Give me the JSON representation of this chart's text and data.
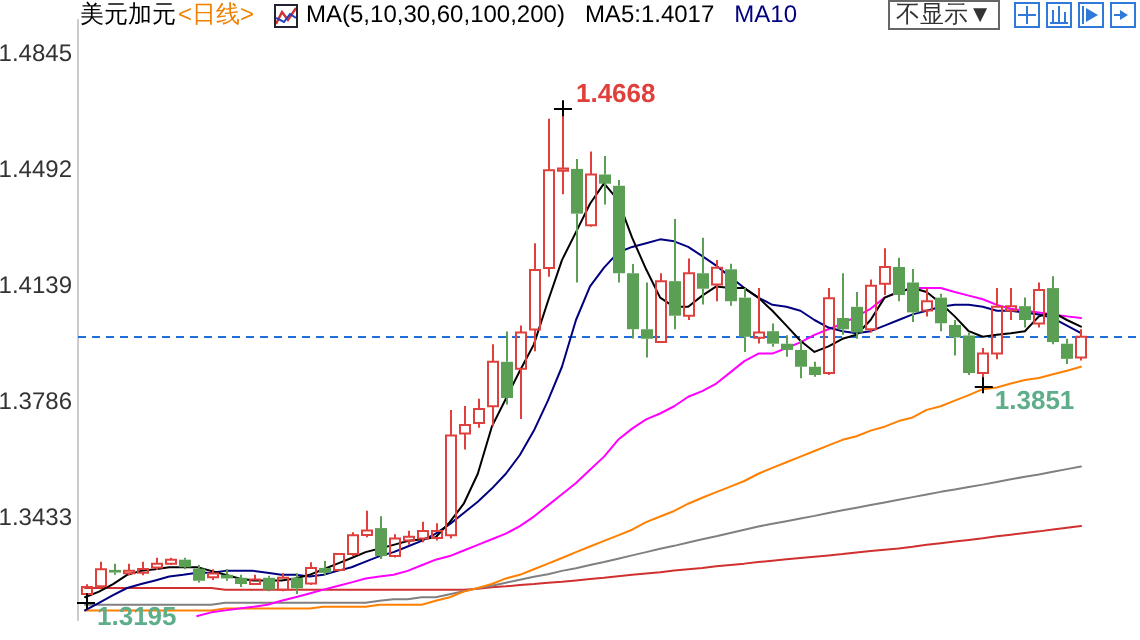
{
  "chart_data": {
    "type": "candlestick",
    "title": "美元加元",
    "subtitle": "<日线>",
    "legend": "top",
    "tick_labels": "y",
    "marker": "none",
    "categories": [
      null,
      null,
      null,
      null,
      null,
      null,
      null,
      null,
      null,
      null,
      null,
      null,
      null,
      null,
      null,
      null,
      null,
      null,
      null,
      null,
      null,
      null,
      null,
      null,
      null,
      null,
      null,
      null,
      null,
      null,
      null,
      null,
      null,
      null,
      null,
      null,
      null,
      null,
      null,
      null,
      null,
      null,
      null,
      null,
      null,
      null,
      null,
      null,
      null,
      null,
      null,
      null,
      null,
      null,
      null,
      null,
      null,
      null,
      null,
      null,
      null,
      null,
      null,
      null,
      null,
      null,
      null,
      null,
      null,
      null,
      null,
      null
    ],
    "ylim": [
      1.3127,
      1.4947
    ],
    "yticks": [
      1.3433,
      1.3786,
      1.4139,
      1.4492,
      1.4845
    ],
    "ohlc": [
      [
        1.3205,
        1.3234,
        1.3195,
        1.3226
      ],
      [
        1.3228,
        1.3303,
        1.3223,
        1.328
      ],
      [
        1.3278,
        1.3297,
        1.3263,
        1.327
      ],
      [
        1.3268,
        1.3297,
        1.3262,
        1.3275
      ],
      [
        1.3269,
        1.3303,
        1.3262,
        1.3281
      ],
      [
        1.3285,
        1.3315,
        1.3278,
        1.3297
      ],
      [
        1.3297,
        1.3315,
        1.3293,
        1.3309
      ],
      [
        1.3309,
        1.3315,
        1.328,
        1.3286
      ],
      [
        1.3282,
        1.3293,
        1.324,
        1.3245
      ],
      [
        1.3256,
        1.328,
        1.3247,
        1.3267
      ],
      [
        1.3263,
        1.328,
        1.3245,
        1.3252
      ],
      [
        1.3254,
        1.3263,
        1.3226,
        1.3235
      ],
      [
        1.3235,
        1.3263,
        1.3232,
        1.3249
      ],
      [
        1.3254,
        1.326,
        1.3213,
        1.3218
      ],
      [
        1.3218,
        1.3268,
        1.3213,
        1.3254
      ],
      [
        1.3254,
        1.3268,
        1.3205,
        1.3222
      ],
      [
        1.3237,
        1.3301,
        1.3232,
        1.3284
      ],
      [
        1.3284,
        1.3305,
        1.3262,
        1.3269
      ],
      [
        1.3278,
        1.3326,
        1.3275,
        1.3326
      ],
      [
        1.3326,
        1.3392,
        1.332,
        1.3383
      ],
      [
        1.3384,
        1.3458,
        1.3377,
        1.3398
      ],
      [
        1.3405,
        1.3441,
        1.3311,
        1.332
      ],
      [
        1.332,
        1.3386,
        1.3316,
        1.3373
      ],
      [
        1.3367,
        1.3397,
        1.3354,
        1.3379
      ],
      [
        1.3373,
        1.3424,
        1.3362,
        1.3396
      ],
      [
        1.3375,
        1.342,
        1.3367,
        1.3396
      ],
      [
        1.3383,
        1.3764,
        1.3373,
        1.3686
      ],
      [
        1.3692,
        1.3776,
        1.3644,
        1.3718
      ],
      [
        1.3724,
        1.3798,
        1.371,
        1.3767
      ],
      [
        1.3775,
        1.3963,
        1.3714,
        1.391
      ],
      [
        1.391,
        1.4002,
        1.378,
        1.38
      ],
      [
        1.3889,
        1.402,
        1.3736,
        1.3999
      ],
      [
        1.4008,
        1.427,
        1.3942,
        1.4189
      ],
      [
        1.4195,
        1.4648,
        1.4168,
        1.4492
      ],
      [
        1.449,
        1.4668,
        1.4419,
        1.4497
      ],
      [
        1.4496,
        1.4526,
        1.4151,
        1.436
      ],
      [
        1.4325,
        1.4549,
        1.432,
        1.4479
      ],
      [
        1.4479,
        1.4535,
        1.4388,
        1.4451
      ],
      [
        1.4445,
        1.4462,
        1.4151,
        1.4179
      ],
      [
        1.4179,
        1.4207,
        1.3981,
        1.4009
      ],
      [
        1.4009,
        1.4151,
        1.3923,
        1.398
      ],
      [
        1.397,
        1.4179,
        1.397,
        1.4155
      ],
      [
        1.4155,
        1.4344,
        1.4009,
        1.405
      ],
      [
        1.405,
        1.4224,
        1.4037,
        1.4179
      ],
      [
        1.4179,
        1.4287,
        1.4084,
        1.4132
      ],
      [
        1.4145,
        1.4219,
        1.4094,
        1.4196
      ],
      [
        1.4191,
        1.4208,
        1.408,
        1.4094
      ],
      [
        1.4105,
        1.4134,
        1.394,
        1.3986
      ],
      [
        1.3983,
        1.4134,
        1.3966,
        1.3999
      ],
      [
        1.4003,
        1.4026,
        1.3956,
        1.3965
      ],
      [
        1.3965,
        1.3991,
        1.3925,
        1.3946
      ],
      [
        1.3946,
        1.3976,
        1.386,
        1.3895
      ],
      [
        1.3895,
        1.391,
        1.3865,
        1.387
      ],
      [
        1.3876,
        1.4134,
        1.387,
        1.4103
      ],
      [
        1.4043,
        1.4179,
        1.3992,
        1.4009
      ],
      [
        1.4077,
        1.4122,
        1.398,
        1.3999
      ],
      [
        1.4009,
        1.416,
        1.3999,
        1.4141
      ],
      [
        1.4147,
        1.4255,
        1.4113,
        1.4198
      ],
      [
        1.4198,
        1.4226,
        1.4094,
        1.4113
      ],
      [
        1.4151,
        1.4192,
        1.4031,
        1.406
      ],
      [
        1.4066,
        1.4134,
        1.4048,
        1.4094
      ],
      [
        1.4105,
        1.4117,
        1.4003,
        1.4027
      ],
      [
        1.4022,
        1.4037,
        1.3929,
        1.3984
      ],
      [
        1.399,
        1.3999,
        1.387,
        1.3876
      ],
      [
        1.3876,
        1.3952,
        1.3851,
        1.3935
      ],
      [
        1.3935,
        1.4134,
        1.3918,
        1.4077
      ],
      [
        1.4066,
        1.4134,
        1.4037,
        1.4079
      ],
      [
        1.4079,
        1.4105,
        1.4014,
        1.4037
      ],
      [
        1.4026,
        1.4151,
        1.4014,
        1.4128
      ],
      [
        1.4134,
        1.417,
        1.3963,
        1.397
      ],
      [
        1.3965,
        1.398,
        1.3903,
        1.3919
      ],
      [
        1.3923,
        1.4009,
        1.3914,
        1.3986
      ]
    ],
    "colors": [
      "#e0403c",
      "#e0403c",
      "#5b9f55",
      "#e0403c",
      "#e0403c",
      "#e0403c",
      "#e0403c",
      "#5b9f55",
      "#5b9f55",
      "#e0403c",
      "#5b9f55",
      "#5b9f55",
      "#e0403c",
      "#5b9f55",
      "#e0403c",
      "#5b9f55",
      "#e0403c",
      "#5b9f55",
      "#e0403c",
      "#e0403c",
      "#e0403c",
      "#5b9f55",
      "#e0403c",
      "#e0403c",
      "#e0403c",
      "#e0403c",
      "#e0403c",
      "#e0403c",
      "#e0403c",
      "#e0403c",
      "#5b9f55",
      "#e0403c",
      "#e0403c",
      "#e0403c",
      "#e0403c",
      "#5b9f55",
      "#e0403c",
      "#5b9f55",
      "#5b9f55",
      "#5b9f55",
      "#5b9f55",
      "#e0403c",
      "#5b9f55",
      "#e0403c",
      "#5b9f55",
      "#e0403c",
      "#5b9f55",
      "#5b9f55",
      "#e0403c",
      "#5b9f55",
      "#5b9f55",
      "#5b9f55",
      "#5b9f55",
      "#e0403c",
      "#5b9f55",
      "#5b9f55",
      "#e0403c",
      "#e0403c",
      "#5b9f55",
      "#5b9f55",
      "#e0403c",
      "#5b9f55",
      "#5b9f55",
      "#5b9f55",
      "#e0403c",
      "#e0403c",
      "#e0403c",
      "#5b9f55",
      "#e0403c",
      "#5b9f55",
      "#5b9f55",
      "#e0403c"
    ],
    "series": [
      {
        "type": "line",
        "color": "#000000",
        "values": [
          1.3195,
          1.3212,
          1.3235,
          1.3263,
          1.3275,
          1.328,
          1.3286,
          1.3286,
          1.3286,
          1.3275,
          1.3263,
          1.3252,
          1.3246,
          1.3246,
          1.3246,
          1.3252,
          1.3263,
          1.328,
          1.3297,
          1.3314,
          1.3332,
          1.3343,
          1.3354,
          1.3366,
          1.3371,
          1.3377,
          1.3423,
          1.3479,
          1.357,
          1.3713,
          1.3798,
          1.3883,
          1.3963,
          1.4094,
          1.4219,
          1.4304,
          1.439,
          1.4452,
          1.4401,
          1.4287,
          1.4191,
          1.4105,
          1.4077,
          1.4077,
          1.4111,
          1.4139,
          1.4134,
          1.4134,
          1.4105,
          1.4065,
          1.402,
          1.3974,
          1.394,
          1.3957,
          1.398,
          1.3992,
          1.4037,
          1.4105,
          1.4122,
          1.4134,
          1.4122,
          1.4088,
          1.4048,
          1.4003,
          1.3986,
          1.3992,
          1.3997,
          1.4003,
          1.4048,
          1.406,
          1.4037,
          1.4017
        ]
      },
      {
        "type": "line",
        "name": "MA10",
        "color": "#000080",
        "values": [
          1.3155,
          1.3178,
          1.3201,
          1.3223,
          1.3235,
          1.3246,
          1.3258,
          1.3263,
          1.3269,
          1.3269,
          1.3275,
          1.3275,
          1.3275,
          1.3269,
          1.3263,
          1.3263,
          1.3258,
          1.3263,
          1.3275,
          1.3286,
          1.3303,
          1.332,
          1.3332,
          1.3349,
          1.3366,
          1.3388,
          1.3417,
          1.3451,
          1.3485,
          1.3525,
          1.357,
          1.3627,
          1.3701,
          1.3792,
          1.3895,
          1.4037,
          1.4139,
          1.4196,
          1.4242,
          1.4259,
          1.427,
          1.4282,
          1.4276,
          1.4259,
          1.4231,
          1.4202,
          1.4168,
          1.4134,
          1.4105,
          1.4083,
          1.4077,
          1.4065,
          1.4037,
          1.4014,
          1.4003,
          1.3997,
          1.4003,
          1.402,
          1.4037,
          1.4054,
          1.4065,
          1.4077,
          1.4083,
          1.4083,
          1.4077,
          1.4065,
          1.4065,
          1.406,
          1.4054,
          1.4043,
          1.402,
          1.3997
        ]
      },
      {
        "type": "line",
        "color": "#ff00ff",
        "values": [
          null,
          null,
          null,
          null,
          null,
          null,
          null,
          null,
          1.3138,
          1.3149,
          1.3155,
          1.3161,
          1.3166,
          1.3172,
          1.3184,
          1.3195,
          1.3206,
          1.3218,
          1.3229,
          1.324,
          1.3252,
          1.3258,
          1.3263,
          1.3275,
          1.3292,
          1.3309,
          1.332,
          1.3337,
          1.3354,
          1.3371,
          1.3388,
          1.3411,
          1.344,
          1.3474,
          1.3508,
          1.3542,
          1.3582,
          1.3622,
          1.3673,
          1.3707,
          1.3735,
          1.3753,
          1.3775,
          1.3804,
          1.3821,
          1.3844,
          1.3878,
          1.3912,
          1.3935,
          1.3935,
          1.3952,
          1.3969,
          1.3992,
          1.4009,
          1.4026,
          1.4048,
          1.4071,
          1.4105,
          1.4122,
          1.4134,
          1.4134,
          1.4134,
          1.4122,
          1.4111,
          1.41,
          1.4083,
          1.4071,
          1.4065,
          1.406,
          1.4054,
          1.4048,
          1.4043
        ]
      },
      {
        "type": "line",
        "color": "#ff8000",
        "values": [
          1.3155,
          1.3155,
          1.3155,
          1.3155,
          1.3155,
          1.3155,
          1.3155,
          1.3155,
          1.3155,
          1.3155,
          1.3161,
          1.3161,
          1.3161,
          1.3161,
          1.3161,
          1.3161,
          1.3161,
          1.3166,
          1.3166,
          1.3166,
          1.3166,
          1.3172,
          1.3172,
          1.3172,
          1.3172,
          1.3184,
          1.3195,
          1.3212,
          1.3223,
          1.3235,
          1.3252,
          1.3263,
          1.328,
          1.3297,
          1.3314,
          1.3332,
          1.3349,
          1.3366,
          1.3383,
          1.34,
          1.3423,
          1.344,
          1.3457,
          1.3479,
          1.3497,
          1.3514,
          1.3531,
          1.3548,
          1.357,
          1.3588,
          1.3605,
          1.3622,
          1.3639,
          1.3656,
          1.3673,
          1.3684,
          1.3701,
          1.3713,
          1.373,
          1.3741,
          1.3764,
          1.3775,
          1.3792,
          1.3809,
          1.3827,
          1.3832,
          1.3844,
          1.3855,
          1.3861,
          1.3872,
          1.3883,
          1.3895
        ]
      },
      {
        "type": "line",
        "color": "#808080",
        "values": [
          1.3172,
          1.3172,
          1.3172,
          1.3172,
          1.3172,
          1.3172,
          1.3172,
          1.3172,
          1.3172,
          1.3172,
          1.3178,
          1.3178,
          1.3178,
          1.3178,
          1.3178,
          1.3178,
          1.3178,
          1.3178,
          1.3178,
          1.3178,
          1.3178,
          1.3184,
          1.3189,
          1.3189,
          1.3195,
          1.3195,
          1.3204,
          1.3213,
          1.3222,
          1.323,
          1.3239,
          1.3248,
          1.3257,
          1.3265,
          1.3275,
          1.3283,
          1.3293,
          1.3302,
          1.3312,
          1.3322,
          1.3332,
          1.3342,
          1.3351,
          1.3361,
          1.3371,
          1.338,
          1.339,
          1.34,
          1.341,
          1.3418,
          1.3426,
          1.3434,
          1.3442,
          1.3451,
          1.3459,
          1.3467,
          1.3475,
          1.3483,
          1.3491,
          1.3499,
          1.3507,
          1.3515,
          1.3522,
          1.353,
          1.3537,
          1.3545,
          1.3553,
          1.3561,
          1.3568,
          1.3576,
          1.3584,
          1.3592
        ]
      },
      {
        "type": "line",
        "color": "#d03030",
        "values": [
          1.3223,
          1.3223,
          1.3223,
          1.3223,
          1.3223,
          1.3223,
          1.3223,
          1.3223,
          1.3223,
          1.3223,
          1.3218,
          1.3218,
          1.3218,
          1.3218,
          1.3218,
          1.3218,
          1.3218,
          1.3218,
          1.3218,
          1.3218,
          1.3218,
          1.3218,
          1.3218,
          1.3218,
          1.3218,
          1.3218,
          1.3218,
          1.3218,
          1.3221,
          1.3225,
          1.3228,
          1.3232,
          1.3235,
          1.3239,
          1.3242,
          1.3246,
          1.325,
          1.3254,
          1.3259,
          1.3263,
          1.3267,
          1.3271,
          1.3276,
          1.328,
          1.3284,
          1.3289,
          1.3293,
          1.3297,
          1.3302,
          1.3306,
          1.331,
          1.3314,
          1.3318,
          1.3322,
          1.3326,
          1.3331,
          1.3335,
          1.3339,
          1.3343,
          1.3348,
          1.3354,
          1.3359,
          1.3364,
          1.3369,
          1.3374,
          1.338,
          1.3385,
          1.339,
          1.3395,
          1.3401,
          1.3406,
          1.3411
        ]
      }
    ],
    "ref_lines": [
      {
        "axis": "y",
        "value": 1.3986,
        "color": "#1e6fd9",
        "line_style": "dashed"
      }
    ],
    "annotations": [
      "MA(5,10,30,60,100,200)",
      "MA5:1.4017",
      "不显示▼",
      "1.4668",
      "1.3851",
      "1.3195"
    ]
  }
}
